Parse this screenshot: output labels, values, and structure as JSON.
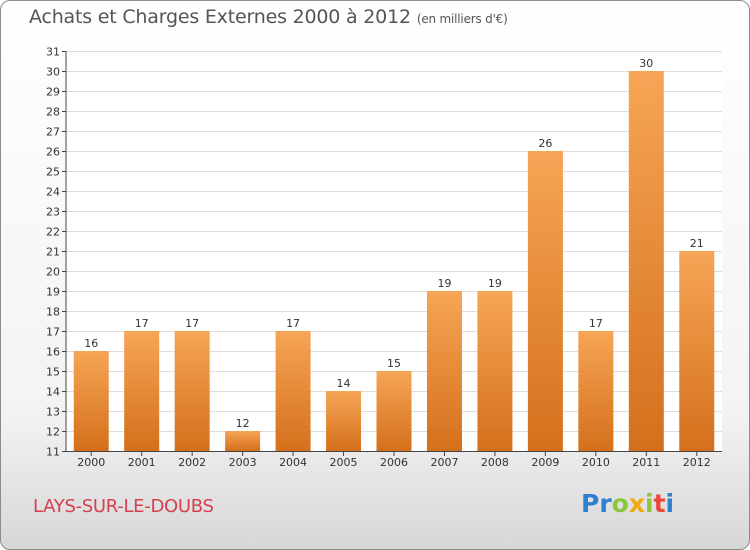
{
  "title": "Achats et Charges Externes 2000 à 2012",
  "subtitle": "(en milliers d'€)",
  "place": "LAYS-SUR-LE-DOUBS",
  "logo": {
    "letters": [
      {
        "char": "P",
        "color": "#2f7fd0"
      },
      {
        "char": "r",
        "color": "#2f7fd0"
      },
      {
        "char": "o",
        "color": "#8cc63f"
      },
      {
        "char": "x",
        "color": "#f2a90b"
      },
      {
        "char": "i",
        "color": "#8cc63f"
      },
      {
        "char": "t",
        "color": "#e84b3c"
      },
      {
        "char": "i",
        "color": "#2f7fd0"
      }
    ]
  },
  "chart_data": {
    "type": "bar",
    "categories": [
      "2000",
      "2001",
      "2002",
      "2003",
      "2004",
      "2005",
      "2006",
      "2007",
      "2008",
      "2009",
      "2010",
      "2011",
      "2012"
    ],
    "values": [
      16,
      17,
      17,
      12,
      17,
      14,
      15,
      19,
      19,
      26,
      17,
      30,
      21
    ],
    "title": "Achats et Charges Externes 2000 à 2012",
    "subtitle": "(en milliers d'€)",
    "xlabel": "",
    "ylabel": "",
    "ylim": [
      11,
      31
    ],
    "yticks": [
      11,
      12,
      13,
      14,
      15,
      16,
      17,
      18,
      19,
      20,
      21,
      22,
      23,
      24,
      25,
      26,
      27,
      28,
      29,
      30,
      31
    ],
    "grid": true,
    "bar_color": "#f0923a"
  }
}
